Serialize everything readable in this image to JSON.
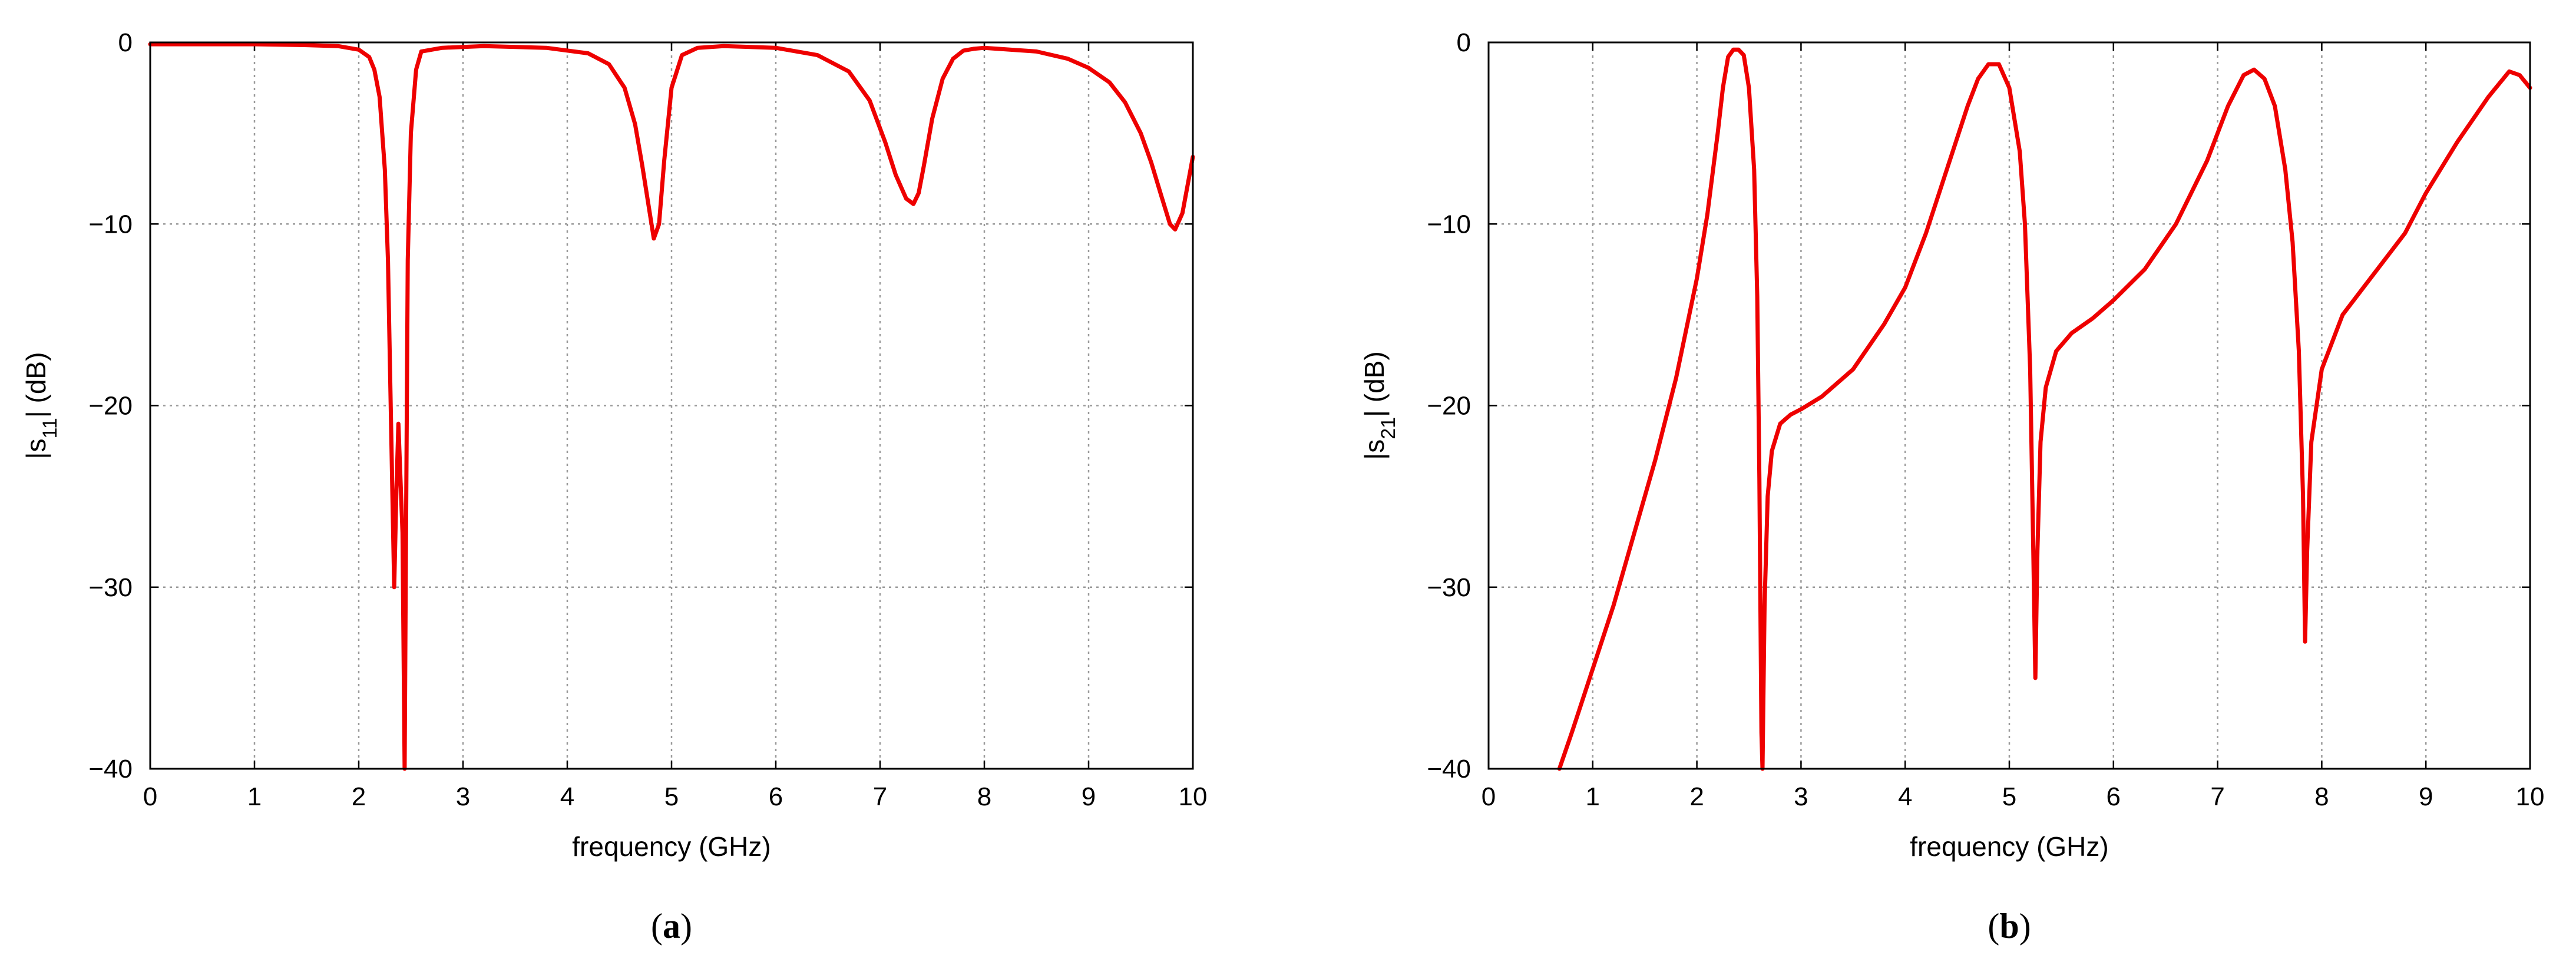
{
  "colors": {
    "curve": "#ee0000",
    "grid": "#9a9a9a",
    "axis": "#000000"
  },
  "panels": [
    {
      "caption": {
        "open": "(",
        "letter": "a",
        "close": ")"
      },
      "ylabel": {
        "prefix": "|s",
        "sub": "11",
        "suffix": "| (dB)"
      },
      "xlabel": "frequency  (GHz)"
    },
    {
      "caption": {
        "open": "(",
        "letter": "b",
        "close": ")"
      },
      "ylabel": {
        "prefix": "|s",
        "sub": "21",
        "suffix": "| (dB)"
      },
      "xlabel": "frequency  (GHz)"
    }
  ],
  "chart_data": [
    {
      "type": "line",
      "xlabel": "frequency  (GHz)",
      "ylabel": "|s11| (dB)",
      "xlim": [
        0,
        10
      ],
      "ylim": [
        -40,
        0
      ],
      "xticks": [
        0,
        1,
        2,
        3,
        4,
        5,
        6,
        7,
        8,
        9,
        10
      ],
      "yticks": [
        0,
        -10,
        -20,
        -30,
        -40
      ],
      "grid": true,
      "series": [
        {
          "color": "#ee0000",
          "x": [
            0,
            0.5,
            1.0,
            1.5,
            1.8,
            2.0,
            2.1,
            2.15,
            2.2,
            2.25,
            2.28,
            2.3,
            2.32,
            2.34,
            2.36,
            2.38,
            2.4,
            2.42,
            2.44,
            2.45,
            2.47,
            2.5,
            2.55,
            2.6,
            2.8,
            3.2,
            3.8,
            4.2,
            4.4,
            4.55,
            4.65,
            4.72,
            4.78,
            4.83,
            4.88,
            4.93,
            5.0,
            5.1,
            5.25,
            5.5,
            6.0,
            6.4,
            6.7,
            6.9,
            7.05,
            7.15,
            7.25,
            7.32,
            7.37,
            7.42,
            7.5,
            7.6,
            7.7,
            7.8,
            7.9,
            8.0,
            8.5,
            8.8,
            9.0,
            9.2,
            9.35,
            9.5,
            9.6,
            9.7,
            9.78,
            9.83,
            9.9,
            10.0
          ],
          "y": [
            -0.1,
            -0.1,
            -0.1,
            -0.15,
            -0.2,
            -0.4,
            -0.8,
            -1.5,
            -3,
            -7,
            -12,
            -18,
            -24,
            -30,
            -25,
            -21,
            -24,
            -27,
            -40,
            -30,
            -12,
            -5,
            -1.5,
            -0.5,
            -0.3,
            -0.2,
            -0.3,
            -0.6,
            -1.2,
            -2.5,
            -4.5,
            -6.8,
            -9,
            -10.8,
            -10,
            -6.5,
            -2.5,
            -0.7,
            -0.3,
            -0.2,
            -0.3,
            -0.7,
            -1.6,
            -3.2,
            -5.5,
            -7.3,
            -8.6,
            -8.9,
            -8.3,
            -6.8,
            -4.2,
            -2.0,
            -0.9,
            -0.45,
            -0.35,
            -0.3,
            -0.5,
            -0.9,
            -1.4,
            -2.2,
            -3.3,
            -5.0,
            -6.6,
            -8.5,
            -10.0,
            -10.3,
            -9.4,
            -6.3
          ]
        }
      ]
    },
    {
      "type": "line",
      "xlabel": "frequency  (GHz)",
      "ylabel": "|s21| (dB)",
      "xlim": [
        0,
        10
      ],
      "ylim": [
        -40,
        0
      ],
      "xticks": [
        0,
        1,
        2,
        3,
        4,
        5,
        6,
        7,
        8,
        9,
        10
      ],
      "yticks": [
        0,
        -10,
        -20,
        -30,
        -40
      ],
      "grid": true,
      "series": [
        {
          "color": "#ee0000",
          "x": [
            0.68,
            0.8,
            1.0,
            1.2,
            1.4,
            1.6,
            1.8,
            2.0,
            2.1,
            2.2,
            2.25,
            2.3,
            2.35,
            2.4,
            2.45,
            2.5,
            2.55,
            2.58,
            2.6,
            2.62,
            2.63,
            2.65,
            2.68,
            2.72,
            2.8,
            2.9,
            3.0,
            3.2,
            3.5,
            3.8,
            4.0,
            4.2,
            4.4,
            4.6,
            4.7,
            4.8,
            4.9,
            5.0,
            5.1,
            5.15,
            5.2,
            5.23,
            5.25,
            5.27,
            5.3,
            5.35,
            5.45,
            5.6,
            5.8,
            6.0,
            6.3,
            6.6,
            6.9,
            7.1,
            7.25,
            7.35,
            7.45,
            7.55,
            7.65,
            7.72,
            7.78,
            7.82,
            7.84,
            7.86,
            7.9,
            8.0,
            8.2,
            8.4,
            8.6,
            8.8,
            9.0,
            9.3,
            9.6,
            9.8,
            9.9,
            10.0
          ],
          "y": [
            -40,
            -38,
            -34.5,
            -31,
            -27,
            -23,
            -18.5,
            -13,
            -9.5,
            -5,
            -2.5,
            -0.8,
            -0.4,
            -0.4,
            -0.7,
            -2.5,
            -7,
            -14,
            -24,
            -38,
            -40,
            -31,
            -25,
            -22.5,
            -21,
            -20.5,
            -20.2,
            -19.5,
            -18,
            -15.5,
            -13.5,
            -10.5,
            -7,
            -3.5,
            -2,
            -1.2,
            -1.2,
            -2.5,
            -6,
            -10,
            -18,
            -28,
            -35,
            -28,
            -22,
            -19,
            -17,
            -16,
            -15.2,
            -14.2,
            -12.5,
            -10,
            -6.5,
            -3.5,
            -1.8,
            -1.5,
            -2.0,
            -3.5,
            -7,
            -11,
            -17,
            -25,
            -33,
            -28,
            -22,
            -18,
            -15,
            -13.5,
            -12,
            -10.5,
            -8.3,
            -5.5,
            -3,
            -1.6,
            -1.8,
            -2.5
          ]
        }
      ]
    }
  ]
}
